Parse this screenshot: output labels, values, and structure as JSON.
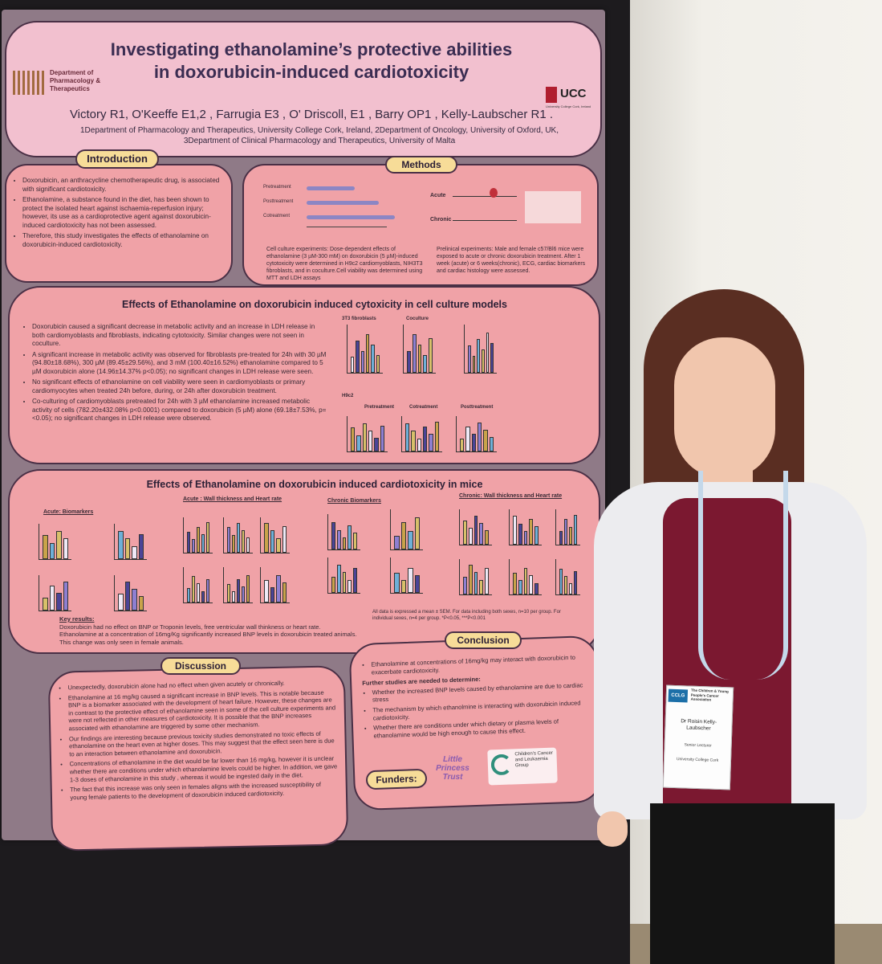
{
  "poster": {
    "title_line1": "Investigating ethanolamine’s protective abilities",
    "title_line2": "in doxorubicin-induced cardiotoxicity",
    "authors": "Victory R1, O'Keeffe E1,2 , Farrugia E3 , O' Driscoll, E1 , Barry OP1 , Kelly-Laubscher R1 .",
    "affiliations": "1Department of Pharmacology and Therapeutics, University College Cork, Ireland, 2Department of Oncology, University of Oxford, UK, 3Department of Clinical Pharmacology and Therapeutics, University of Malta",
    "logo_left": "Department of Pharmacology & Therapeutics",
    "logo_right": "UCC",
    "logo_right_sub": "University College Cork, Ireland"
  },
  "introduction": {
    "heading": "Introduction",
    "bullets": [
      "Doxorubicin, an anthracycline chemotherapeutic drug, is associated with significant cardiotoxicity.",
      "Ethanolamine, a substance found in the diet, has been shown to protect the isolated heart against ischaemia-reperfusion injury; however, its use as a cardioprotective agent against doxorubicin-induced cardiotoxicity has not been assessed.",
      "Therefore, this study investigates the effects of ethanolamine on doxorubicin-induced cardiotoxicity."
    ]
  },
  "methods": {
    "heading": "Methods",
    "rows": [
      "Pretreatment",
      "Posttreatment",
      "Cotreatment"
    ],
    "acute": "Acute",
    "chronic": "Chronic",
    "cell_culture": "Cell culture experiments: Dose-dependent effects of ethanolamine (3 µM-300 mM) on doxorubicin (5 µM)-induced cytotoxicity were determined in H9c2 cardiomyoblasts, NIH3T3 fibroblasts, and in coculture.Cell viability was determined using MTT and LDH assays",
    "preclinical": "Prelinical experiments: Male and female c57/Bl6 mice were exposed to acute or chronic doxorubicin treatment. After 1 week (acute) or 6 weeks(chronic), ECG, cardiac biomarkers and cardiac histology were assessed."
  },
  "cell": {
    "heading": "Effects of Ethanolamine on doxorubicin induced cytoxicity in cell culture models",
    "bullets": [
      "Doxorubicin caused a significant decrease in metabolic activity and an increase in LDH release in both cardiomyoblasts and fibroblasts, indicating cytotoxicity. Similar changes were not seen in coculture.",
      "A significant increase in metabolic activity was observed for fibroblasts pre-treated for 24h with 30 µM (94.80±18.68%), 300 µM (89.45±29.56%), and 3 mM (100.40±16.52%) ethanolamine compared to 5 µM doxorubicin alone (14.96±14.37% p<0.05); no significant changes in LDH release were seen.",
      "No significant effects of ethanolamine on cell viability were seen in cardiomyoblasts or primary cardiomyocytes when treated 24h before, during, or 24h after doxorubicin treatment.",
      "Co-culturing of cardiomyoblasts pretreated for 24h with 3 µM ethanolamine increased metabolic activity of cells (782.20±432.08% p<0.0001) compared to doxorubicin (5 µM) alone (69.18±7.53%, p=<0.05); no significant changes in LDH release were observed."
    ],
    "fig_labels": [
      "3T3 fibroblasts",
      "Coculture",
      "H9c2",
      "Pretreatment",
      "Cotreatment",
      "Posttreatment"
    ]
  },
  "mice": {
    "heading": "Effects of Ethanolamine on doxorubicin induced cardiotoxicity in mice",
    "labels": [
      "Acute: Biomarkers",
      "Acute : Wall thickness and Heart rate",
      "Chronic Biomarkers",
      "Chronic: Wall thickness and Heart rate"
    ],
    "key_results_heading": "Key results:",
    "key_results_1": "Doxorubicin had no effect on BNP or Troponin levels, free ventricular wall thinkness or heart rate.",
    "key_results_2": "Ethanolamine at a concentration of 16mg/Kg significantly increased BNP levels in doxorubicin treated animals. This change was only seen in female animals.",
    "note": "All data is expressed a mean ± SEM. For data including both sexes, n=10 per group. For individual sexes, n=4 per group. *P<0.05, ***P<0.001"
  },
  "discussion": {
    "heading": "Discussion",
    "bullets": [
      "Unexpectedly, doxorubicin alone had no effect when given acutely or chronically.",
      "Ethanolamine at 16 mg/kg caused a significant increase in BNP levels. This is notable because BNP is a biomarker associated with the development of heart failure. However, these changes are in contrast to the protective effect of ethanolamine seen in some of the cell culture experiments and were not reflected in other measures of cardiotoxicity. It is possible that the BNP increases associated with ethanolamine are triggered by some other mechanism.",
      "Our findings are interesting because previous toxicity studies demonstrated no toxic effects of ethanolamine on the heart even at higher doses. This may suggest that the effect seen here is due to an interaction between ethanolamine and doxorubicin.",
      "Concentrations of ethanolamine in the diet would be far lower than 16 mg/kg, however it is unclear whether there are conditions under which ethanolamine levels could be higher. In addition, we gave 1-3 doses of ethanolamine in this study , whereas it would be ingested daily in the diet.",
      "The fact that this increase was only seen in females aligns with the increased susceptibility of young female patients to the development of doxorubicin induced cardiotoxicity."
    ]
  },
  "conclusion": {
    "heading": "Conclusion",
    "bullet1": "Ethanolamine at concentrations of 16mg/kg may interact with doxorubicin to exacerbate cardiotoxicity.",
    "further": "Further studies are needed to determine:",
    "bullets": [
      "Whether the increased BNP levels caused by ethanolamine are due to cardiac stress",
      "The mechanism by which ethanolmine is interacting with doxorubicin induced cardiotoxicity.",
      "Whether there are conditions under which dietary or plasma levels of ethanolamine would be high enough to cause this effect."
    ],
    "funders": "Funders:",
    "funder1": "Little Princess Trust",
    "funder2": "Children's Cancer and Leukaemia Group"
  },
  "badge": {
    "org": "CCLG",
    "org_full": "The Children & Young People's Cancer Association",
    "name": "Dr Roisin Kelly-Laubscher",
    "role": "Senior Lecturer",
    "inst": "University College Cork"
  }
}
